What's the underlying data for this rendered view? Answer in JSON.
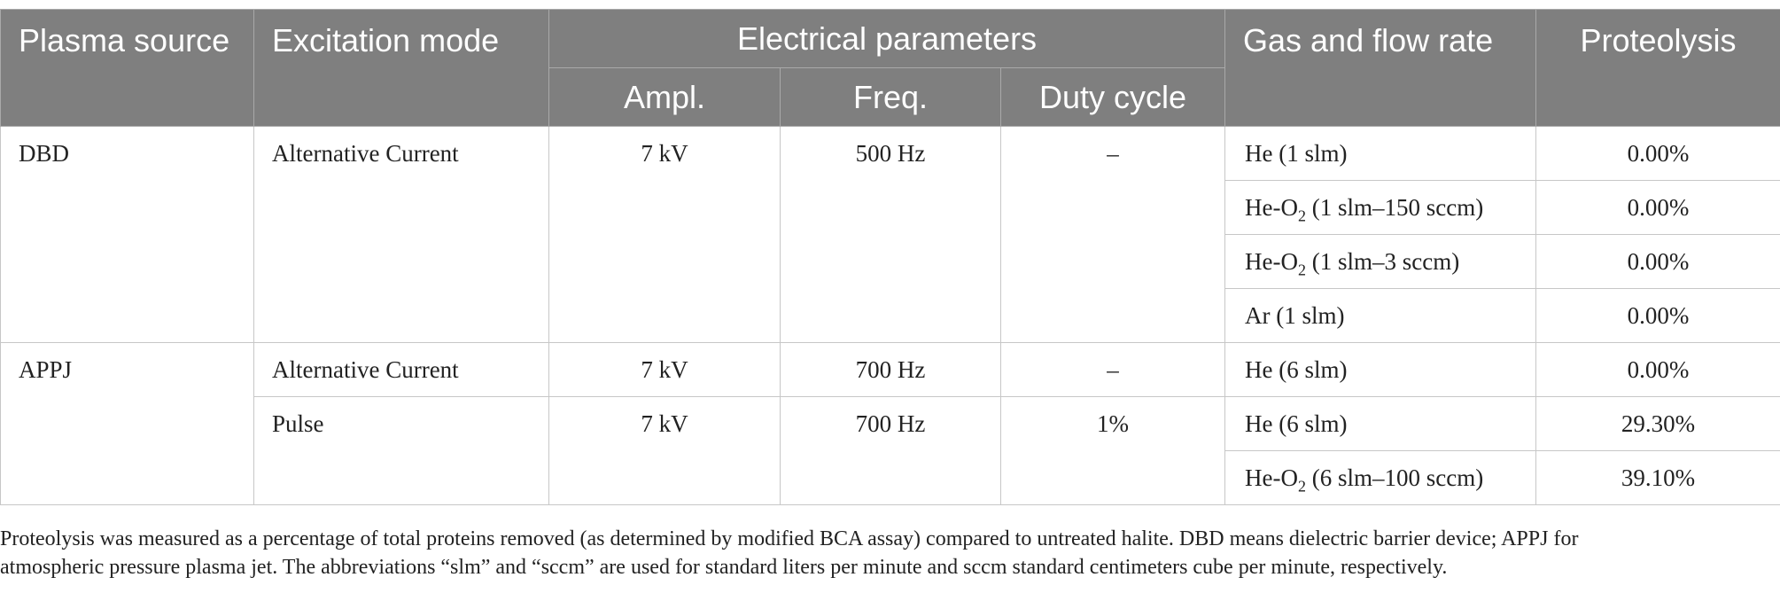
{
  "table": {
    "headers": {
      "plasma_source": "Plasma source",
      "excitation_mode": "Excitation mode",
      "electrical_parameters": "Electrical parameters",
      "ampl": "Ampl.",
      "freq": "Freq.",
      "duty_cycle": "Duty cycle",
      "gas_flow": "Gas and flow rate",
      "proteolysis": "Proteolysis"
    },
    "groups": [
      {
        "source": "DBD",
        "modes": [
          {
            "mode": "Alternative Current",
            "ampl": "7 kV",
            "freq": "500 Hz",
            "duty": "–",
            "gases": [
              {
                "gas_pre": "He (1 slm)",
                "gas_sub": "",
                "gas_post": "",
                "proteolysis": "0.00%"
              },
              {
                "gas_pre": "He-O",
                "gas_sub": "2",
                "gas_post": " (1 slm–150 sccm)",
                "proteolysis": "0.00%"
              },
              {
                "gas_pre": "He-O",
                "gas_sub": "2",
                "gas_post": " (1 slm–3 sccm)",
                "proteolysis": "0.00%"
              },
              {
                "gas_pre": "Ar (1 slm)",
                "gas_sub": "",
                "gas_post": "",
                "proteolysis": "0.00%"
              }
            ]
          }
        ]
      },
      {
        "source": "APPJ",
        "modes": [
          {
            "mode": "Alternative Current",
            "ampl": "7 kV",
            "freq": "700 Hz",
            "duty": "–",
            "gases": [
              {
                "gas_pre": "He (6 slm)",
                "gas_sub": "",
                "gas_post": "",
                "proteolysis": "0.00%"
              }
            ]
          },
          {
            "mode": "Pulse",
            "ampl": "7 kV",
            "freq": "700 Hz",
            "duty": "1%",
            "gases": [
              {
                "gas_pre": "He (6 slm)",
                "gas_sub": "",
                "gas_post": "",
                "proteolysis": "29.30%"
              },
              {
                "gas_pre": "He-O",
                "gas_sub": "2",
                "gas_post": " (6 slm–100 sccm)",
                "proteolysis": "39.10%"
              }
            ]
          }
        ]
      }
    ]
  },
  "footnote": {
    "line1": "Proteolysis was measured as a percentage of total proteins removed (as determined by modified BCA assay) compared to untreated halite. DBD means dielectric barrier device; APPJ for",
    "line2": "atmospheric pressure plasma jet. The abbreviations “slm” and “sccm” are used for standard liters per minute and sccm standard centimeters cube per minute, respectively."
  }
}
